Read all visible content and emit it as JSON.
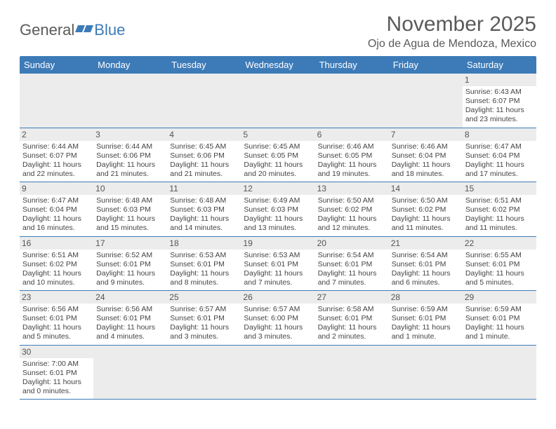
{
  "brand": {
    "general": "General",
    "blue": "Blue"
  },
  "header": {
    "title": "November 2025",
    "location": "Ojo de Agua de Mendoza, Mexico"
  },
  "colors": {
    "accent": "#3d7bb8",
    "header_bg": "#3d7bb8",
    "daynum_bg": "#ececec",
    "border": "#3d7bb8"
  },
  "daynames": [
    "Sunday",
    "Monday",
    "Tuesday",
    "Wednesday",
    "Thursday",
    "Friday",
    "Saturday"
  ],
  "weeks": [
    [
      {
        "empty": true
      },
      {
        "empty": true
      },
      {
        "empty": true
      },
      {
        "empty": true
      },
      {
        "empty": true
      },
      {
        "empty": true
      },
      {
        "day": "1",
        "sunrise": "Sunrise: 6:43 AM",
        "sunset": "Sunset: 6:07 PM",
        "daylight": "Daylight: 11 hours and 23 minutes."
      }
    ],
    [
      {
        "day": "2",
        "sunrise": "Sunrise: 6:44 AM",
        "sunset": "Sunset: 6:07 PM",
        "daylight": "Daylight: 11 hours and 22 minutes."
      },
      {
        "day": "3",
        "sunrise": "Sunrise: 6:44 AM",
        "sunset": "Sunset: 6:06 PM",
        "daylight": "Daylight: 11 hours and 21 minutes."
      },
      {
        "day": "4",
        "sunrise": "Sunrise: 6:45 AM",
        "sunset": "Sunset: 6:06 PM",
        "daylight": "Daylight: 11 hours and 21 minutes."
      },
      {
        "day": "5",
        "sunrise": "Sunrise: 6:45 AM",
        "sunset": "Sunset: 6:05 PM",
        "daylight": "Daylight: 11 hours and 20 minutes."
      },
      {
        "day": "6",
        "sunrise": "Sunrise: 6:46 AM",
        "sunset": "Sunset: 6:05 PM",
        "daylight": "Daylight: 11 hours and 19 minutes."
      },
      {
        "day": "7",
        "sunrise": "Sunrise: 6:46 AM",
        "sunset": "Sunset: 6:04 PM",
        "daylight": "Daylight: 11 hours and 18 minutes."
      },
      {
        "day": "8",
        "sunrise": "Sunrise: 6:47 AM",
        "sunset": "Sunset: 6:04 PM",
        "daylight": "Daylight: 11 hours and 17 minutes."
      }
    ],
    [
      {
        "day": "9",
        "sunrise": "Sunrise: 6:47 AM",
        "sunset": "Sunset: 6:04 PM",
        "daylight": "Daylight: 11 hours and 16 minutes."
      },
      {
        "day": "10",
        "sunrise": "Sunrise: 6:48 AM",
        "sunset": "Sunset: 6:03 PM",
        "daylight": "Daylight: 11 hours and 15 minutes."
      },
      {
        "day": "11",
        "sunrise": "Sunrise: 6:48 AM",
        "sunset": "Sunset: 6:03 PM",
        "daylight": "Daylight: 11 hours and 14 minutes."
      },
      {
        "day": "12",
        "sunrise": "Sunrise: 6:49 AM",
        "sunset": "Sunset: 6:03 PM",
        "daylight": "Daylight: 11 hours and 13 minutes."
      },
      {
        "day": "13",
        "sunrise": "Sunrise: 6:50 AM",
        "sunset": "Sunset: 6:02 PM",
        "daylight": "Daylight: 11 hours and 12 minutes."
      },
      {
        "day": "14",
        "sunrise": "Sunrise: 6:50 AM",
        "sunset": "Sunset: 6:02 PM",
        "daylight": "Daylight: 11 hours and 11 minutes."
      },
      {
        "day": "15",
        "sunrise": "Sunrise: 6:51 AM",
        "sunset": "Sunset: 6:02 PM",
        "daylight": "Daylight: 11 hours and 11 minutes."
      }
    ],
    [
      {
        "day": "16",
        "sunrise": "Sunrise: 6:51 AM",
        "sunset": "Sunset: 6:02 PM",
        "daylight": "Daylight: 11 hours and 10 minutes."
      },
      {
        "day": "17",
        "sunrise": "Sunrise: 6:52 AM",
        "sunset": "Sunset: 6:01 PM",
        "daylight": "Daylight: 11 hours and 9 minutes."
      },
      {
        "day": "18",
        "sunrise": "Sunrise: 6:53 AM",
        "sunset": "Sunset: 6:01 PM",
        "daylight": "Daylight: 11 hours and 8 minutes."
      },
      {
        "day": "19",
        "sunrise": "Sunrise: 6:53 AM",
        "sunset": "Sunset: 6:01 PM",
        "daylight": "Daylight: 11 hours and 7 minutes."
      },
      {
        "day": "20",
        "sunrise": "Sunrise: 6:54 AM",
        "sunset": "Sunset: 6:01 PM",
        "daylight": "Daylight: 11 hours and 7 minutes."
      },
      {
        "day": "21",
        "sunrise": "Sunrise: 6:54 AM",
        "sunset": "Sunset: 6:01 PM",
        "daylight": "Daylight: 11 hours and 6 minutes."
      },
      {
        "day": "22",
        "sunrise": "Sunrise: 6:55 AM",
        "sunset": "Sunset: 6:01 PM",
        "daylight": "Daylight: 11 hours and 5 minutes."
      }
    ],
    [
      {
        "day": "23",
        "sunrise": "Sunrise: 6:56 AM",
        "sunset": "Sunset: 6:01 PM",
        "daylight": "Daylight: 11 hours and 5 minutes."
      },
      {
        "day": "24",
        "sunrise": "Sunrise: 6:56 AM",
        "sunset": "Sunset: 6:01 PM",
        "daylight": "Daylight: 11 hours and 4 minutes."
      },
      {
        "day": "25",
        "sunrise": "Sunrise: 6:57 AM",
        "sunset": "Sunset: 6:01 PM",
        "daylight": "Daylight: 11 hours and 3 minutes."
      },
      {
        "day": "26",
        "sunrise": "Sunrise: 6:57 AM",
        "sunset": "Sunset: 6:00 PM",
        "daylight": "Daylight: 11 hours and 3 minutes."
      },
      {
        "day": "27",
        "sunrise": "Sunrise: 6:58 AM",
        "sunset": "Sunset: 6:01 PM",
        "daylight": "Daylight: 11 hours and 2 minutes."
      },
      {
        "day": "28",
        "sunrise": "Sunrise: 6:59 AM",
        "sunset": "Sunset: 6:01 PM",
        "daylight": "Daylight: 11 hours and 1 minute."
      },
      {
        "day": "29",
        "sunrise": "Sunrise: 6:59 AM",
        "sunset": "Sunset: 6:01 PM",
        "daylight": "Daylight: 11 hours and 1 minute."
      }
    ],
    [
      {
        "day": "30",
        "sunrise": "Sunrise: 7:00 AM",
        "sunset": "Sunset: 6:01 PM",
        "daylight": "Daylight: 11 hours and 0 minutes."
      },
      {
        "empty": true
      },
      {
        "empty": true
      },
      {
        "empty": true
      },
      {
        "empty": true
      },
      {
        "empty": true
      },
      {
        "empty": true
      }
    ]
  ]
}
